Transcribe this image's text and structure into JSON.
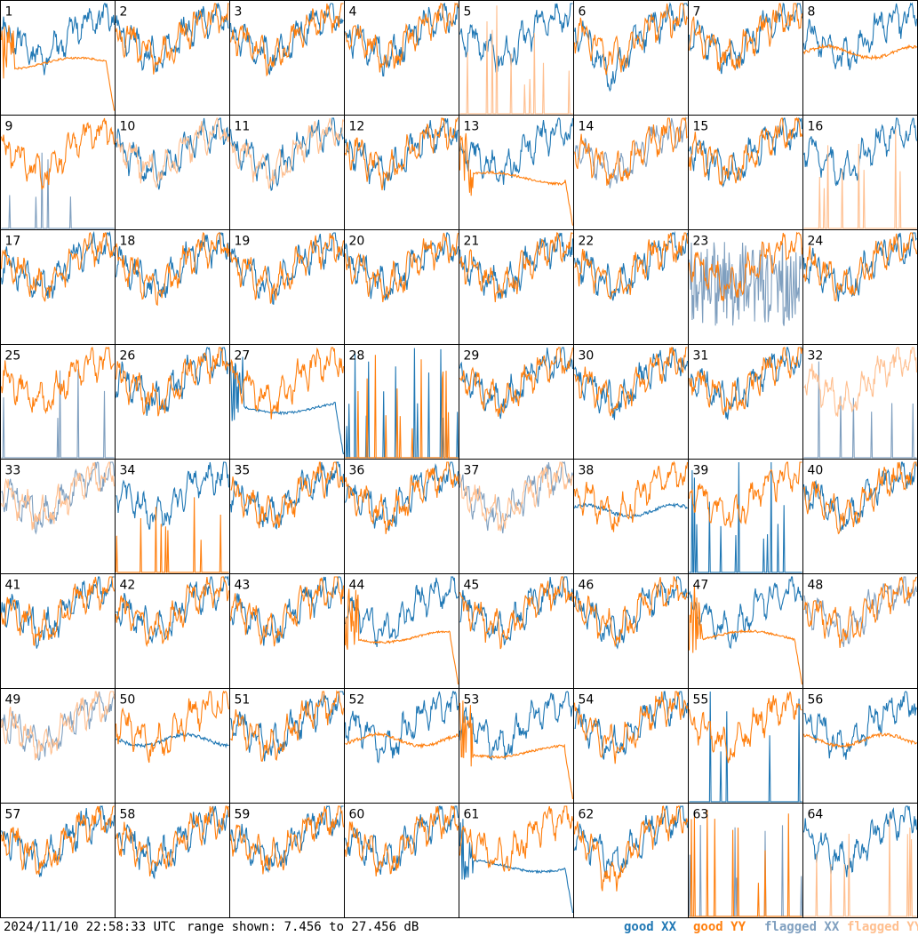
{
  "footer": {
    "timestamp": "2024/11/10 22:58:33 UTC",
    "range_text": "range shown: 7.456 to 27.456 dB"
  },
  "legend": [
    {
      "label": "good XX",
      "color": "#1f77b4"
    },
    {
      "label": "good YY",
      "color": "#ff7f0e"
    },
    {
      "label": "flagged XX",
      "color": "#7f9fbf"
    },
    {
      "label": "flagged YY",
      "color": "#ffbf8f"
    }
  ],
  "chart_data": {
    "type": "line",
    "grid_layout": {
      "rows": 8,
      "cols": 8
    },
    "ylim": [
      7.456,
      27.456
    ],
    "yunit": "dB",
    "panels": [
      {
        "id": "1",
        "xx": "good",
        "yy": "good",
        "xx_shape": "wave",
        "yy_shape": "droop"
      },
      {
        "id": "2",
        "xx": "good",
        "yy": "good",
        "xx_shape": "wave",
        "yy_shape": "wave"
      },
      {
        "id": "3",
        "xx": "good",
        "yy": "good",
        "xx_shape": "wave",
        "yy_shape": "wave"
      },
      {
        "id": "4",
        "xx": "good",
        "yy": "good",
        "xx_shape": "wave",
        "yy_shape": "wave"
      },
      {
        "id": "5",
        "xx": "good",
        "yy": "flagged",
        "xx_shape": "wave",
        "yy_shape": "spikes"
      },
      {
        "id": "6",
        "xx": "good",
        "yy": "good",
        "xx_shape": "dip",
        "yy_shape": "wave"
      },
      {
        "id": "7",
        "xx": "good",
        "yy": "good",
        "xx_shape": "wave",
        "yy_shape": "wave"
      },
      {
        "id": "8",
        "xx": "good",
        "yy": "good",
        "xx_shape": "wave",
        "yy_shape": "smooth"
      },
      {
        "id": "9",
        "xx": "flagged",
        "yy": "good",
        "xx_shape": "spikes",
        "yy_shape": "wave"
      },
      {
        "id": "10",
        "xx": "good",
        "yy": "flagged",
        "xx_shape": "wave",
        "yy_shape": "wave"
      },
      {
        "id": "11",
        "xx": "good",
        "yy": "flagged",
        "xx_shape": "wave",
        "yy_shape": "wave"
      },
      {
        "id": "12",
        "xx": "good",
        "yy": "good",
        "xx_shape": "wave",
        "yy_shape": "wave"
      },
      {
        "id": "13",
        "xx": "good",
        "yy": "good",
        "xx_shape": "wave",
        "yy_shape": "droop"
      },
      {
        "id": "14",
        "xx": "flagged",
        "yy": "good",
        "xx_shape": "wave",
        "yy_shape": "wave"
      },
      {
        "id": "15",
        "xx": "good",
        "yy": "good",
        "xx_shape": "wave",
        "yy_shape": "wave"
      },
      {
        "id": "16",
        "xx": "good",
        "yy": "flagged",
        "xx_shape": "wave",
        "yy_shape": "spikes"
      },
      {
        "id": "17",
        "xx": "good",
        "yy": "good",
        "xx_shape": "wave",
        "yy_shape": "wave"
      },
      {
        "id": "18",
        "xx": "good",
        "yy": "good",
        "xx_shape": "wave",
        "yy_shape": "wave"
      },
      {
        "id": "19",
        "xx": "good",
        "yy": "good",
        "xx_shape": "wave",
        "yy_shape": "wave"
      },
      {
        "id": "20",
        "xx": "good",
        "yy": "good",
        "xx_shape": "wave",
        "yy_shape": "wave"
      },
      {
        "id": "21",
        "xx": "good",
        "yy": "good",
        "xx_shape": "wave",
        "yy_shape": "wave"
      },
      {
        "id": "22",
        "xx": "good",
        "yy": "good",
        "xx_shape": "wave",
        "yy_shape": "wave"
      },
      {
        "id": "23",
        "xx": "flagged",
        "yy": "good",
        "xx_shape": "noisy",
        "yy_shape": "wave"
      },
      {
        "id": "24",
        "xx": "good",
        "yy": "good",
        "xx_shape": "wave",
        "yy_shape": "wave"
      },
      {
        "id": "25",
        "xx": "flagged",
        "yy": "good",
        "xx_shape": "spikes",
        "yy_shape": "wave"
      },
      {
        "id": "26",
        "xx": "good",
        "yy": "good",
        "xx_shape": "wave",
        "yy_shape": "wave"
      },
      {
        "id": "27",
        "xx": "good",
        "yy": "good",
        "xx_shape": "droop",
        "yy_shape": "wave"
      },
      {
        "id": "28",
        "xx": "good",
        "yy": "good",
        "xx_shape": "spikes",
        "yy_shape": "spikes"
      },
      {
        "id": "29",
        "xx": "good",
        "yy": "good",
        "xx_shape": "wave",
        "yy_shape": "wave"
      },
      {
        "id": "30",
        "xx": "good",
        "yy": "good",
        "xx_shape": "wave",
        "yy_shape": "wave"
      },
      {
        "id": "31",
        "xx": "good",
        "yy": "good",
        "xx_shape": "wave",
        "yy_shape": "wave"
      },
      {
        "id": "32",
        "xx": "flagged",
        "yy": "flagged",
        "xx_shape": "spikes",
        "yy_shape": "wave"
      },
      {
        "id": "33",
        "xx": "flagged",
        "yy": "flagged",
        "xx_shape": "wave",
        "yy_shape": "wave"
      },
      {
        "id": "34",
        "xx": "good",
        "yy": "good",
        "xx_shape": "wave",
        "yy_shape": "spikes"
      },
      {
        "id": "35",
        "xx": "good",
        "yy": "good",
        "xx_shape": "wave",
        "yy_shape": "wave"
      },
      {
        "id": "36",
        "xx": "good",
        "yy": "good",
        "xx_shape": "wave",
        "yy_shape": "wave"
      },
      {
        "id": "37",
        "xx": "flagged",
        "yy": "flagged",
        "xx_shape": "wave",
        "yy_shape": "wave"
      },
      {
        "id": "38",
        "xx": "good",
        "yy": "good",
        "xx_shape": "smooth",
        "yy_shape": "wave"
      },
      {
        "id": "39",
        "xx": "good",
        "yy": "good",
        "xx_shape": "spikes",
        "yy_shape": "wave"
      },
      {
        "id": "40",
        "xx": "good",
        "yy": "good",
        "xx_shape": "wave",
        "yy_shape": "wave"
      },
      {
        "id": "41",
        "xx": "good",
        "yy": "good",
        "xx_shape": "wave",
        "yy_shape": "wave"
      },
      {
        "id": "42",
        "xx": "good",
        "yy": "good",
        "xx_shape": "wave",
        "yy_shape": "wave"
      },
      {
        "id": "43",
        "xx": "good",
        "yy": "good",
        "xx_shape": "wave",
        "yy_shape": "wave"
      },
      {
        "id": "44",
        "xx": "good",
        "yy": "good",
        "xx_shape": "wave",
        "yy_shape": "droop"
      },
      {
        "id": "45",
        "xx": "good",
        "yy": "good",
        "xx_shape": "wave",
        "yy_shape": "wave"
      },
      {
        "id": "46",
        "xx": "good",
        "yy": "good",
        "xx_shape": "wave",
        "yy_shape": "wave"
      },
      {
        "id": "47",
        "xx": "good",
        "yy": "good",
        "xx_shape": "wave",
        "yy_shape": "droop"
      },
      {
        "id": "48",
        "xx": "flagged",
        "yy": "good",
        "xx_shape": "wave",
        "yy_shape": "wave"
      },
      {
        "id": "49",
        "xx": "flagged",
        "yy": "flagged",
        "xx_shape": "wave",
        "yy_shape": "wave"
      },
      {
        "id": "50",
        "xx": "good",
        "yy": "good",
        "xx_shape": "smooth",
        "yy_shape": "wave"
      },
      {
        "id": "51",
        "xx": "good",
        "yy": "good",
        "xx_shape": "wave",
        "yy_shape": "wave"
      },
      {
        "id": "52",
        "xx": "good",
        "yy": "good",
        "xx_shape": "wave",
        "yy_shape": "smooth"
      },
      {
        "id": "53",
        "xx": "good",
        "yy": "good",
        "xx_shape": "wave",
        "yy_shape": "droop"
      },
      {
        "id": "54",
        "xx": "good",
        "yy": "good",
        "xx_shape": "wave",
        "yy_shape": "wave"
      },
      {
        "id": "55",
        "xx": "good",
        "yy": "good",
        "xx_shape": "spikes",
        "yy_shape": "wave"
      },
      {
        "id": "56",
        "xx": "good",
        "yy": "good",
        "xx_shape": "wave",
        "yy_shape": "smooth"
      },
      {
        "id": "57",
        "xx": "good",
        "yy": "good",
        "xx_shape": "wave",
        "yy_shape": "wave"
      },
      {
        "id": "58",
        "xx": "good",
        "yy": "good",
        "xx_shape": "wave",
        "yy_shape": "wave"
      },
      {
        "id": "59",
        "xx": "good",
        "yy": "good",
        "xx_shape": "wave",
        "yy_shape": "wave"
      },
      {
        "id": "60",
        "xx": "good",
        "yy": "good",
        "xx_shape": "wave",
        "yy_shape": "wave"
      },
      {
        "id": "61",
        "xx": "good",
        "yy": "good",
        "xx_shape": "droop",
        "yy_shape": "wave"
      },
      {
        "id": "62",
        "xx": "good",
        "yy": "good",
        "xx_shape": "wave",
        "yy_shape": "dip"
      },
      {
        "id": "63",
        "xx": "flagged",
        "yy": "good",
        "xx_shape": "spikes",
        "yy_shape": "spikes"
      },
      {
        "id": "64",
        "xx": "good",
        "yy": "flagged",
        "xx_shape": "wave",
        "yy_shape": "spikes"
      }
    ]
  }
}
